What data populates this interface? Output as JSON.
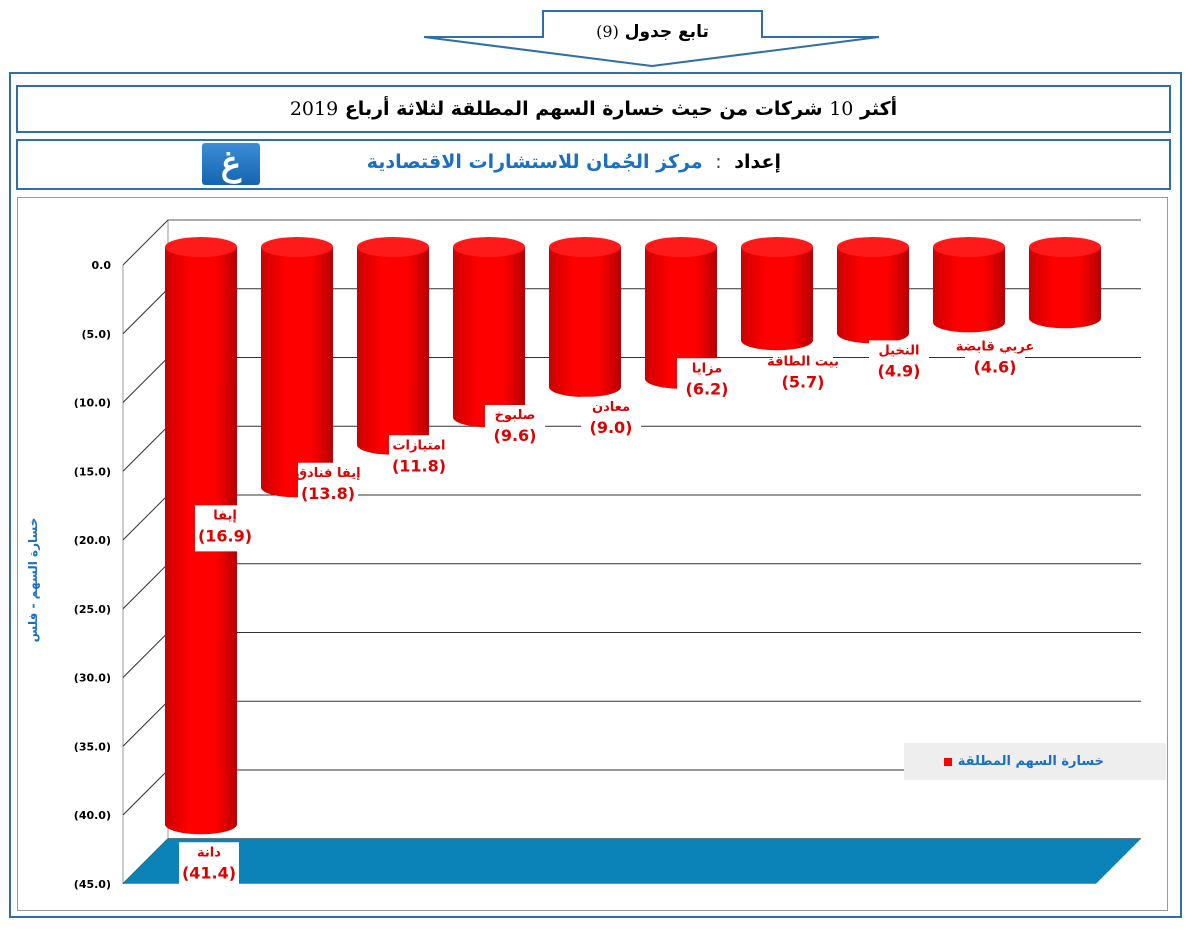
{
  "header": {
    "arrow_text": "تابع جدول",
    "arrow_number": "(9)",
    "title_bold_1": "أكثر",
    "title_num": "10",
    "title_bold_2": "شركات من حيث خسارة السهم المطلقة لثلاثة أرباع",
    "title_year": "2019",
    "prep_label": "إعداد",
    "prep_colon": ":",
    "prep_name": "مركز الجُمان للاستشارات الاقتصادية"
  },
  "colors": {
    "bar": "#ff0000",
    "floor": "#0b83b8",
    "frame": "#2f6fa8",
    "label_text": "#e00000",
    "axis_title": "#1a6fc4"
  },
  "chart_data": {
    "type": "bar",
    "categories": [
      "دانة",
      "إيفا",
      "إيفا فنادق",
      "امتيازات",
      "صلبوخ",
      "معادن",
      "مزايا",
      "بيت الطاقة",
      "النخيل",
      "عربي قابضة"
    ],
    "values": [
      41.4,
      16.9,
      13.8,
      11.8,
      9.6,
      9.0,
      6.2,
      5.7,
      4.9,
      4.6
    ],
    "value_labels": [
      "(41.4)",
      "(16.9)",
      "(13.8)",
      "(11.8)",
      "(9.6)",
      "(9.0)",
      "(6.2)",
      "(5.7)",
      "(4.9)",
      "(4.6)"
    ],
    "series": [
      {
        "name": "خسارة السهم المطلقة",
        "values": [
          41.4,
          16.9,
          13.8,
          11.8,
          9.6,
          9.0,
          6.2,
          5.7,
          4.9,
          4.6
        ]
      }
    ],
    "ylabel": "خسارة السهم - فلس",
    "yticks": [
      "0.0",
      "(5.0)",
      "(10.0)",
      "(15.0)",
      "(20.0)",
      "(25.0)",
      "(30.0)",
      "(35.0)",
      "(40.0)",
      "(45.0)"
    ],
    "ylim": [
      0,
      45
    ],
    "grid": true,
    "legend_position": "bottom-right"
  }
}
